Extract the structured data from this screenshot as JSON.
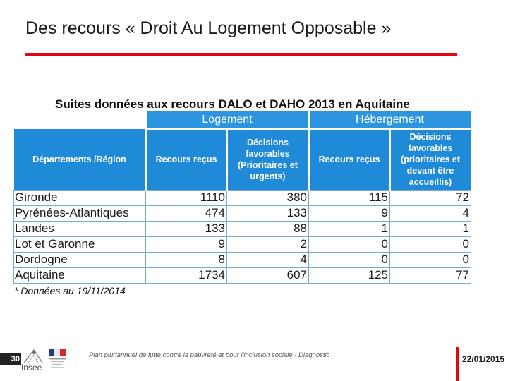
{
  "slide": {
    "title": "Des recours « Droit Au Logement Opposable »",
    "table_title": "Suites données aux recours DALO et DAHO 2013 en Aquitaine",
    "footnote": "* Données au 19/11/2014"
  },
  "table": {
    "group_headers": {
      "logement": "Logement",
      "hebergement": "Hébergement"
    },
    "col_headers": {
      "departements": "Départements /Région",
      "log_recours": "Recours reçus",
      "log_decisions": "Décisions favorables (Prioritaires et urgents)",
      "heb_recours": "Recours reçus",
      "heb_decisions": "Décisions favorables (prioritaires et devant être accueillis)"
    },
    "rows": [
      {
        "name": "Gironde",
        "log_recours": "1110",
        "log_decisions": "380",
        "heb_recours": "115",
        "heb_decisions": "72"
      },
      {
        "name": "Pyrénées-Atlantiques",
        "log_recours": "474",
        "log_decisions": "133",
        "heb_recours": "9",
        "heb_decisions": "4"
      },
      {
        "name": "Landes",
        "log_recours": "133",
        "log_decisions": "88",
        "heb_recours": "1",
        "heb_decisions": "1"
      },
      {
        "name": "Lot et Garonne",
        "log_recours": "9",
        "log_decisions": "2",
        "heb_recours": "0",
        "heb_decisions": "0"
      },
      {
        "name": "Dordogne",
        "log_recours": "8",
        "log_decisions": "4",
        "heb_recours": "0",
        "heb_decisions": "0"
      },
      {
        "name": "Aquitaine",
        "log_recours": "1734",
        "log_decisions": "607",
        "heb_recours": "125",
        "heb_decisions": "77"
      }
    ]
  },
  "footer": {
    "page_number": "30",
    "logo_text": "Insee",
    "text": "Plan pluriannuel de lutte contre la pauvreté et pour l'inclusion sociale - Diagnostic",
    "date": "22/01/2015"
  },
  "colors": {
    "accent_red": "#e30613",
    "header_blue": "#1f8ad8",
    "border_blue": "#7aa9d6"
  }
}
